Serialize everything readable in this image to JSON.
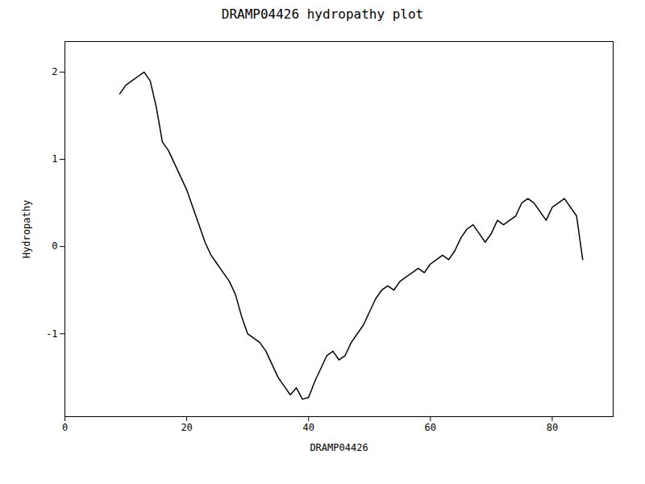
{
  "chart_data": {
    "type": "line",
    "title": "DRAMP04426 hydropathy plot",
    "xlabel": "DRAMP04426",
    "ylabel": "Hydropathy",
    "xlim": [
      0,
      90
    ],
    "ylim": [
      -1.95,
      2.35
    ],
    "xticks": [
      0,
      20,
      40,
      60,
      80
    ],
    "yticks": [
      -1,
      0,
      1,
      2
    ],
    "color": "#000000",
    "x": [
      9,
      10,
      11,
      12,
      13,
      14,
      15,
      16,
      17,
      18,
      19,
      20,
      21,
      22,
      23,
      24,
      25,
      26,
      27,
      28,
      29,
      30,
      31,
      32,
      33,
      34,
      35,
      36,
      37,
      38,
      39,
      40,
      41,
      42,
      43,
      44,
      45,
      46,
      47,
      48,
      49,
      50,
      51,
      52,
      53,
      54,
      55,
      56,
      57,
      58,
      59,
      60,
      61,
      62,
      63,
      64,
      65,
      66,
      67,
      68,
      69,
      70,
      71,
      72,
      73,
      74,
      75,
      76,
      77,
      78,
      79,
      80,
      81,
      82,
      83,
      84,
      85
    ],
    "values": [
      1.75,
      1.85,
      1.9,
      1.95,
      2.0,
      1.9,
      1.6,
      1.2,
      1.1,
      0.95,
      0.8,
      0.65,
      0.45,
      0.25,
      0.05,
      -0.1,
      -0.2,
      -0.3,
      -0.4,
      -0.55,
      -0.8,
      -1.0,
      -1.05,
      -1.1,
      -1.2,
      -1.35,
      -1.5,
      -1.6,
      -1.7,
      -1.62,
      -1.75,
      -1.73,
      -1.55,
      -1.4,
      -1.25,
      -1.2,
      -1.3,
      -1.25,
      -1.1,
      -1.0,
      -0.9,
      -0.75,
      -0.6,
      -0.5,
      -0.45,
      -0.5,
      -0.4,
      -0.35,
      -0.3,
      -0.25,
      -0.3,
      -0.2,
      -0.15,
      -0.1,
      -0.15,
      -0.05,
      0.1,
      0.2,
      0.25,
      0.15,
      0.05,
      0.15,
      0.3,
      0.25,
      0.3,
      0.35,
      0.5,
      0.55,
      0.5,
      0.4,
      0.3,
      0.45,
      0.5,
      0.55,
      0.45,
      0.35,
      -0.15
    ]
  }
}
